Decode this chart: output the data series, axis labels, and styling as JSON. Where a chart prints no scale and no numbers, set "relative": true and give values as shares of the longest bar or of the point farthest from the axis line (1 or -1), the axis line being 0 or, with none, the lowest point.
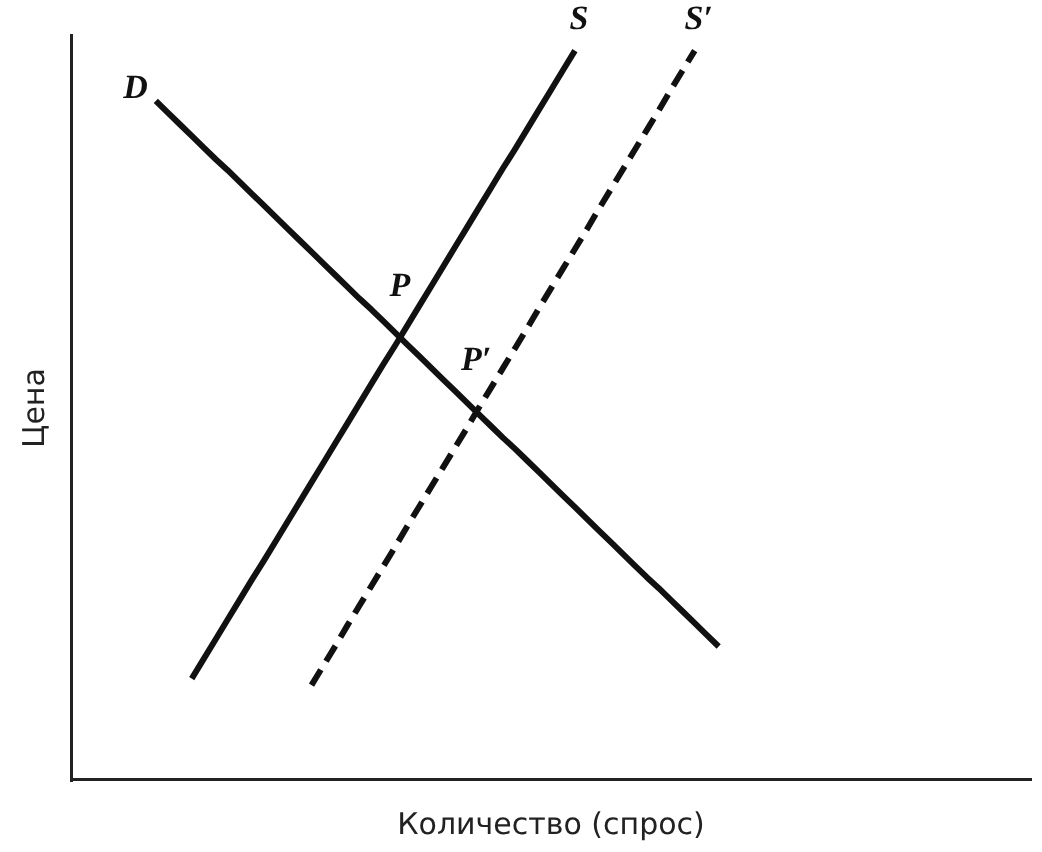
{
  "chart_data": {
    "type": "line",
    "relative": true,
    "tick_labels": false,
    "legend": false,
    "line_style": "solid",
    "xlabel": "Количество (спрос)",
    "ylabel": "Цена",
    "categories": [
      null,
      null,
      null,
      null,
      null,
      null,
      null,
      null,
      null,
      null,
      null,
      null,
      null,
      null,
      null,
      null,
      null,
      null,
      null,
      null,
      null,
      null,
      null,
      null,
      null,
      null,
      null,
      null,
      null,
      null,
      null,
      null,
      null,
      null,
      null,
      null,
      null,
      null,
      null,
      null,
      null,
      null,
      null,
      null,
      null,
      null,
      null,
      null,
      null,
      null,
      null,
      null,
      null,
      null,
      null,
      null,
      null,
      null,
      null,
      null,
      null,
      null,
      null,
      null,
      null,
      null,
      null,
      null,
      null,
      null,
      null,
      null,
      null,
      null,
      null,
      null,
      null,
      null,
      null,
      null,
      null
    ],
    "series": [
      {
        "name": "D",
        "color": "#111111",
        "values": [
          null,
          null,
          null,
          null,
          null,
          null,
          null,
          0.931,
          0.915,
          0.899,
          0.883,
          0.867,
          0.851,
          0.836,
          0.82,
          0.804,
          0.788,
          0.772,
          0.756,
          0.74,
          0.724,
          0.708,
          0.692,
          0.676,
          0.66,
          0.645,
          0.629,
          0.613,
          0.597,
          0.581,
          0.565,
          0.549,
          0.533,
          0.517,
          0.501,
          0.485,
          0.469,
          0.454,
          0.438,
          0.422,
          0.406,
          0.39,
          0.374,
          0.358,
          0.342,
          0.326,
          0.31,
          0.294,
          0.278,
          0.263,
          0.247,
          0.231,
          0.215,
          0.199,
          0.183,
          null,
          null,
          null,
          null,
          null,
          null,
          null,
          null,
          null,
          null,
          null,
          null,
          null,
          null,
          null,
          null,
          null,
          null,
          null,
          null,
          null,
          null,
          null,
          null,
          null,
          null
        ]
      },
      {
        "name": "S",
        "color": "#111111",
        "values": [
          null,
          null,
          null,
          null,
          null,
          null,
          null,
          null,
          null,
          null,
          0.139,
          0.166,
          0.193,
          0.22,
          0.247,
          0.274,
          0.3,
          0.327,
          0.354,
          0.381,
          0.408,
          0.435,
          0.462,
          0.489,
          0.516,
          0.543,
          0.57,
          0.596,
          0.623,
          0.65,
          0.677,
          0.704,
          0.731,
          0.758,
          0.785,
          0.812,
          0.839,
          0.865,
          0.892,
          0.919,
          0.946,
          0.973,
          1,
          null,
          null,
          null,
          null,
          null,
          null,
          null,
          null,
          null,
          null,
          null,
          null,
          null,
          null,
          null,
          null,
          null,
          null,
          null,
          null,
          null,
          null,
          null,
          null,
          null,
          null,
          null,
          null,
          null,
          null,
          null,
          null,
          null,
          null,
          null,
          null,
          null,
          null
        ]
      },
      {
        "name": "S′",
        "color": "#111111",
        "line_style": "dashed",
        "values": [
          null,
          null,
          null,
          null,
          null,
          null,
          null,
          null,
          null,
          null,
          null,
          null,
          null,
          null,
          null,
          null,
          null,
          null,
          null,
          null,
          0.13,
          0.157,
          0.184,
          0.212,
          0.239,
          0.266,
          0.293,
          0.32,
          0.348,
          0.375,
          0.402,
          0.429,
          0.456,
          0.483,
          0.511,
          0.538,
          0.565,
          0.592,
          0.619,
          0.647,
          0.674,
          0.701,
          0.728,
          0.755,
          0.783,
          0.81,
          0.837,
          0.864,
          0.891,
          0.918,
          0.946,
          0.973,
          1,
          null,
          null,
          null,
          null,
          null,
          null,
          null,
          null,
          null,
          null,
          null,
          null,
          null,
          null,
          null,
          null,
          null,
          null,
          null,
          null,
          null,
          null,
          null,
          null,
          null,
          null,
          null,
          null
        ]
      }
    ],
    "annotations": [
      {
        "text": "P",
        "y": 0.607
      },
      {
        "text": "P′",
        "y": 0.505
      }
    ]
  }
}
